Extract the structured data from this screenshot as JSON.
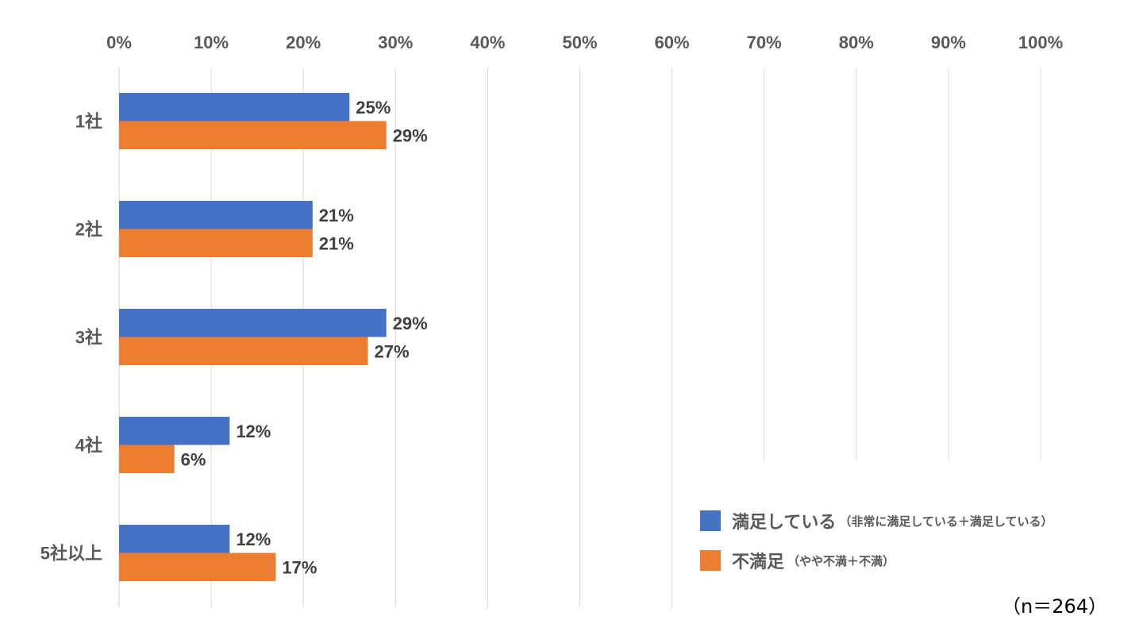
{
  "chart_data": {
    "type": "bar",
    "orientation": "horizontal",
    "categories": [
      "1社",
      "2社",
      "3社",
      "4社",
      "5社以上"
    ],
    "series": [
      {
        "name": "満足している",
        "name_note": "（非常に満足している＋満足している）",
        "color": "#4472C4",
        "values": [
          25,
          21,
          29,
          12,
          12
        ]
      },
      {
        "name": "不満足",
        "name_note": "（やや不満＋不満）",
        "color": "#ED7D31",
        "values": [
          29,
          21,
          27,
          6,
          17
        ]
      }
    ],
    "value_labels": [
      [
        "25%",
        "21%",
        "29%",
        "12%",
        "12%"
      ],
      [
        "29%",
        "21%",
        "27%",
        "6%",
        "17%"
      ]
    ],
    "xlim": [
      0,
      100
    ],
    "xticks": [
      "0%",
      "10%",
      "20%",
      "30%",
      "40%",
      "50%",
      "60%",
      "70%",
      "80%",
      "90%",
      "100%"
    ],
    "grid": true,
    "legend_position": "bottom-right",
    "note": "（n＝264）"
  }
}
